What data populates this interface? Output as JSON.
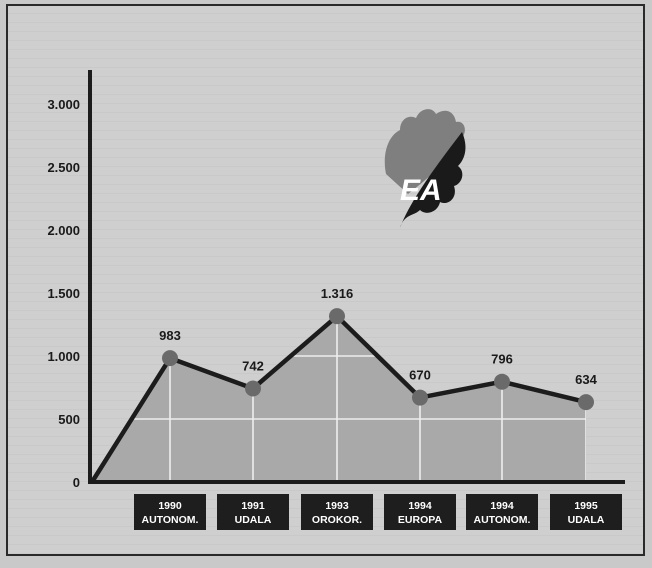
{
  "chart_data": {
    "type": "area",
    "categories": [
      [
        "1990",
        "AUTONOM."
      ],
      [
        "1991",
        "UDALA"
      ],
      [
        "1993",
        "OROKOR."
      ],
      [
        "1994",
        "EUROPA"
      ],
      [
        "1994",
        "AUTONOM."
      ],
      [
        "1995",
        "UDALA"
      ]
    ],
    "values": [
      983,
      742,
      1316,
      670,
      796,
      634
    ],
    "data_labels": [
      "983",
      "742",
      "1.316",
      "670",
      "796",
      "634"
    ],
    "y_ticks": [
      {
        "value": 0,
        "label": "0"
      },
      {
        "value": 500,
        "label": "500"
      },
      {
        "value": 1000,
        "label": "1.000"
      },
      {
        "value": 1500,
        "label": "1.500"
      },
      {
        "value": 2000,
        "label": "2.000"
      },
      {
        "value": 2500,
        "label": "2.500"
      },
      {
        "value": 3000,
        "label": "3.000"
      }
    ],
    "ylim": [
      0,
      3400
    ],
    "line_starts_at_zero": true,
    "grid": true,
    "colors": {
      "area": "#a9a9a9",
      "line": "#1c1c1c",
      "marker": "#6a6a6a",
      "grid": "#eeeeee",
      "label_box": "#1e1e1e"
    }
  },
  "logo": {
    "text": "EA"
  }
}
